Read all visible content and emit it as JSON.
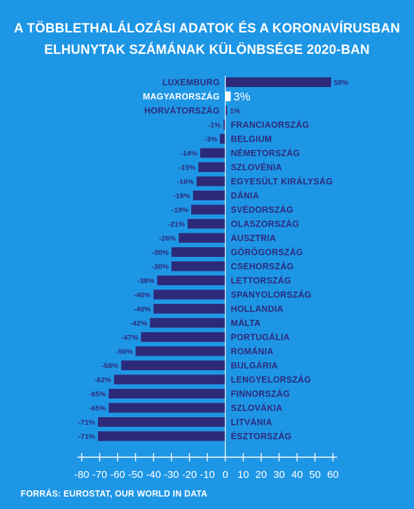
{
  "title_line1": "A TÖBBLETHALÁLOZÁSI ADATOK ÉS A KORONAVÍRUSBAN",
  "title_line2": "ELHUNYTAK SZÁMÁNAK KÜLÖNBSÉGE 2020-BAN",
  "source": "FORRÁS: EUROSTAT, OUR WORLD IN DATA",
  "colors": {
    "background": "#1E96E6",
    "bar": "#2E2A7A",
    "highlight": "#FFFFFF",
    "label": "#2E2A7A",
    "axis": "#FFFFFF"
  },
  "chart_data": {
    "type": "bar",
    "orientation": "horizontal",
    "highlight_category": "MAGYARORSZÁG",
    "categories": [
      "LUXEMBURG",
      "MAGYARORSZÁG",
      "HORVÁTORSZÁG",
      "FRANCIAORSZÁG",
      "BELGIUM",
      "NÉMETORSZÁG",
      "SZLOVÉNIA",
      "EGYESÜLT KIRÁLYSÁG",
      "DÁNIA",
      "SVÉDORSZÁG",
      "OLASZORSZÁG",
      "AUSZTRIA",
      "GÖRÖGORSZÁG",
      "CSEHORSZÁG",
      "LETTORSZÁG",
      "SPANYOLORSZÁG",
      "HOLLANDIA",
      "MÁLTA",
      "PORTUGÁLIA",
      "ROMÁNIA",
      "BULGÁRIA",
      "LENGYELORSZÁG",
      "FINNORSZÁG",
      "SZLOVÁKIA",
      "LITVÁNIA",
      "ÉSZTORSZÁG"
    ],
    "values": [
      59,
      3,
      1,
      -1,
      -3,
      -14,
      -15,
      -16,
      -18,
      -19,
      -21,
      -26,
      -30,
      -30,
      -38,
      -40,
      -40,
      -42,
      -47,
      -50,
      -58,
      -62,
      -65,
      -65,
      -71,
      -71
    ],
    "value_labels": [
      "59%",
      "3%",
      "1%",
      "-1%",
      "-3%",
      "-14%",
      "-15%",
      "-16%",
      "-18%",
      "-19%",
      "-21%",
      "-26%",
      "-30%",
      "-30%",
      "-38%",
      "-40%",
      "-40%",
      "-42%",
      "-47%",
      "-50%",
      "-58%",
      "-62%",
      "-65%",
      "-65%",
      "-71%",
      "-71%"
    ],
    "xlim": [
      -80,
      60
    ],
    "xticks": [
      -80,
      -70,
      -60,
      -50,
      -40,
      -30,
      -20,
      -10,
      0,
      10,
      20,
      30,
      40,
      50,
      60
    ],
    "xtick_labels": [
      "-80",
      "-70",
      "-60",
      "-50",
      "-40",
      "-30",
      "-20",
      "-10",
      "0",
      "10",
      "20",
      "30",
      "40",
      "50",
      "60"
    ],
    "grid": false,
    "legend": "none"
  }
}
